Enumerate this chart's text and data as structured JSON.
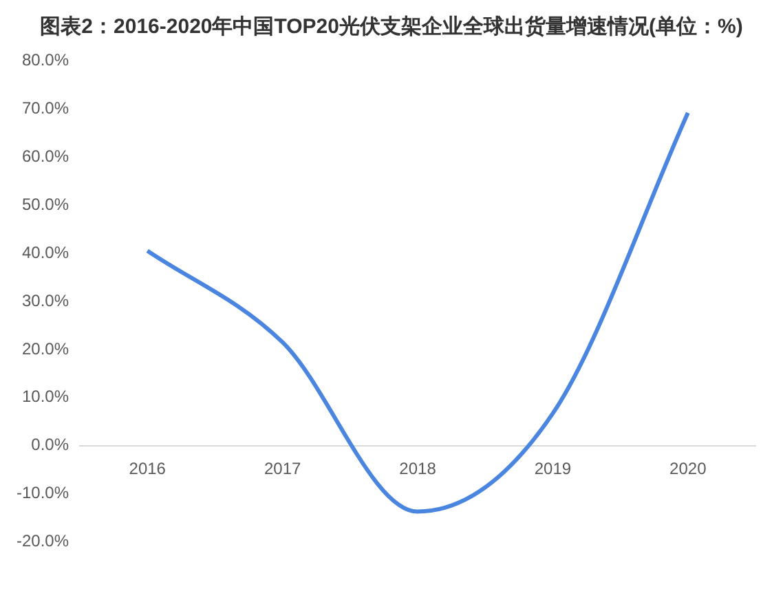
{
  "chart_data": {
    "type": "line",
    "title": "图表2：2016-2020年中国TOP20光伏支架企业全球出货量增速情况(单位：%)",
    "categories": [
      "2016",
      "2017",
      "2018",
      "2019",
      "2020"
    ],
    "series": [
      {
        "color": "#4a86e0",
        "values": [
          40.5,
          21.5,
          -13.7,
          6.7,
          69.2
        ]
      }
    ],
    "ylim": [
      -20,
      80
    ],
    "yticks": [
      {
        "value": -20,
        "label": "-20.0%"
      },
      {
        "value": -10,
        "label": "-10.0%"
      },
      {
        "value": 0,
        "label": "0.0%"
      },
      {
        "value": 10,
        "label": "10.0%"
      },
      {
        "value": 20,
        "label": "20.0%"
      },
      {
        "value": 30,
        "label": "30.0%"
      },
      {
        "value": 40,
        "label": "40.0%"
      },
      {
        "value": 50,
        "label": "50.0%"
      },
      {
        "value": 60,
        "label": "60.0%"
      },
      {
        "value": 70,
        "label": "70.0%"
      },
      {
        "value": 80,
        "label": "80.0%"
      }
    ],
    "grid": false,
    "legend": false,
    "marker": "none",
    "line_style": "solid"
  }
}
